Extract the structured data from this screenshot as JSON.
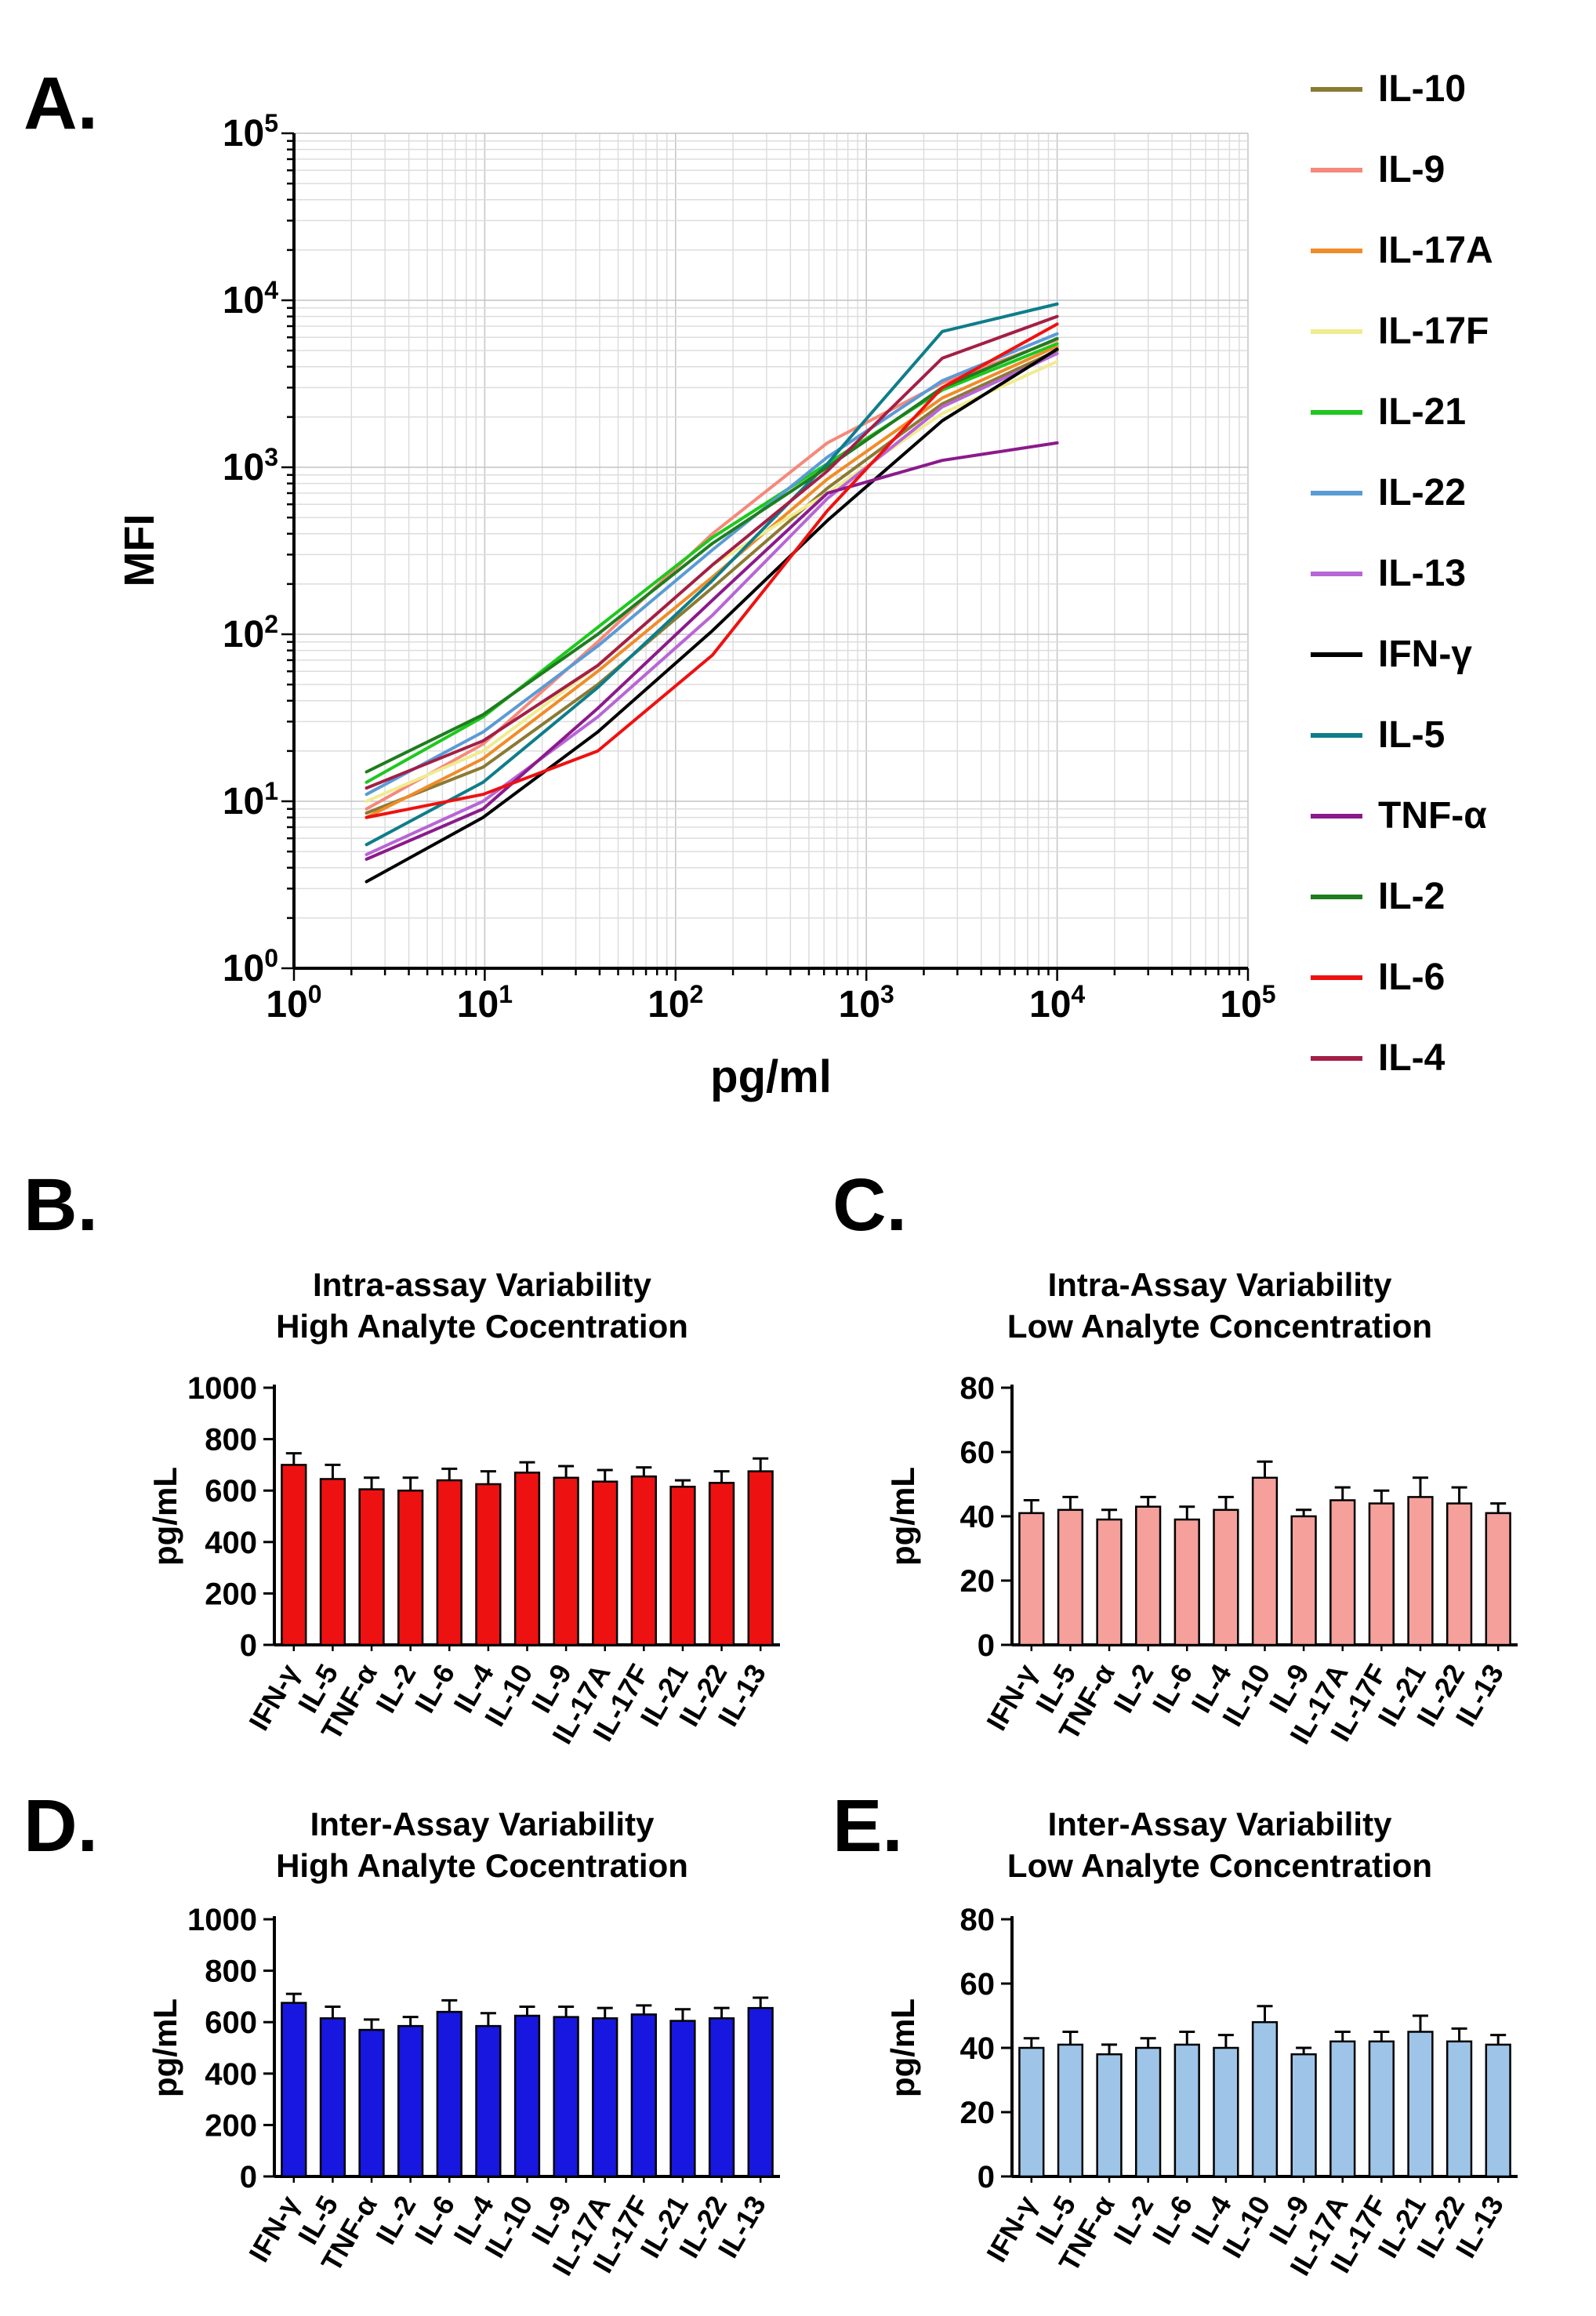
{
  "panels": {
    "a": {
      "label": "A."
    },
    "b": {
      "label": "B."
    },
    "c": {
      "label": "C."
    },
    "d": {
      "label": "D."
    },
    "e": {
      "label": "E."
    }
  },
  "chart_data": [
    {
      "id": "panel-a",
      "type": "line",
      "xscale": "log",
      "yscale": "log",
      "xlabel": "pg/ml",
      "ylabel": "MFI",
      "xlim": [
        1,
        100000
      ],
      "ylim": [
        1,
        100000
      ],
      "grid": true,
      "legend_position": "right",
      "x": [
        2.4,
        9.8,
        39.1,
        156,
        625,
        2500,
        10000
      ],
      "series": [
        {
          "name": "IL-10",
          "color": "#8a7a33",
          "values": [
            8.5,
            16,
            50,
            190,
            750,
            2400,
            5000
          ]
        },
        {
          "name": "IL-9",
          "color": "#f5897b",
          "values": [
            9,
            22,
            90,
            400,
            1400,
            3200,
            5800
          ]
        },
        {
          "name": "IL-17A",
          "color": "#f08c28",
          "values": [
            8,
            18,
            60,
            220,
            850,
            2600,
            5300
          ]
        },
        {
          "name": "IL-17F",
          "color": "#f0ec8f",
          "values": [
            10,
            20,
            65,
            260,
            700,
            2100,
            4300
          ]
        },
        {
          "name": "IL-21",
          "color": "#1ec81e",
          "values": [
            13,
            32,
            110,
            380,
            1050,
            2900,
            5500
          ]
        },
        {
          "name": "IL-22",
          "color": "#5b9bd5",
          "values": [
            11,
            26,
            85,
            320,
            1150,
            3300,
            6300
          ]
        },
        {
          "name": "IL-13",
          "color": "#b865d6",
          "values": [
            4.8,
            10,
            32,
            130,
            650,
            2300,
            4800
          ]
        },
        {
          "name": "IFN-γ",
          "color": "#000000",
          "values": [
            3.3,
            8,
            26,
            105,
            480,
            1900,
            5100
          ]
        },
        {
          "name": "IL-5",
          "color": "#0e7d8a",
          "values": [
            5.5,
            13,
            48,
            210,
            1050,
            6500,
            9500
          ]
        },
        {
          "name": "TNF-α",
          "color": "#8b1a8b",
          "values": [
            4.5,
            9,
            36,
            160,
            700,
            1100,
            1400
          ]
        },
        {
          "name": "IL-2",
          "color": "#1e7d1e",
          "values": [
            15,
            33,
            100,
            350,
            1000,
            3000,
            5900
          ]
        },
        {
          "name": "IL-6",
          "color": "#ee1111",
          "values": [
            8,
            11,
            20,
            75,
            550,
            3000,
            7200
          ]
        },
        {
          "name": "IL-4",
          "color": "#a31f45",
          "values": [
            12,
            23,
            65,
            260,
            950,
            4500,
            8000
          ]
        }
      ]
    },
    {
      "id": "panel-b",
      "type": "bar",
      "title": "Intra-assay Variability",
      "subtitle": "High Analyte Cocentration",
      "ylabel": "pg/mL",
      "ylim": [
        0,
        1000
      ],
      "ytick_step": 200,
      "bar_color": "#ee1111",
      "categories": [
        "IFN-γ",
        "IL-5",
        "TNF-α",
        "IL-2",
        "IL-6",
        "IL-4",
        "IL-10",
        "IL-9",
        "IL-17A",
        "IL-17F",
        "IL-21",
        "IL-22",
        "IL-13"
      ],
      "values": [
        700,
        645,
        605,
        600,
        640,
        625,
        670,
        650,
        635,
        655,
        615,
        630,
        675
      ],
      "errors": [
        45,
        55,
        45,
        50,
        45,
        50,
        40,
        45,
        45,
        35,
        25,
        45,
        50
      ]
    },
    {
      "id": "panel-c",
      "type": "bar",
      "title": "Intra-Assay Variability",
      "subtitle": "Low Analyte Concentration",
      "ylabel": "pg/mL",
      "ylim": [
        0,
        80
      ],
      "ytick_step": 20,
      "bar_color": "#f5a09b",
      "categories": [
        "IFN-γ",
        "IL-5",
        "TNF-α",
        "IL-2",
        "IL-6",
        "IL-4",
        "IL-10",
        "IL-9",
        "IL-17A",
        "IL-17F",
        "IL-21",
        "IL-22",
        "IL-13"
      ],
      "values": [
        41,
        42,
        39,
        43,
        39,
        42,
        52,
        40,
        45,
        44,
        46,
        44,
        41
      ],
      "errors": [
        4,
        4,
        3,
        3,
        4,
        4,
        5,
        2,
        4,
        4,
        6,
        5,
        3
      ]
    },
    {
      "id": "panel-d",
      "type": "bar",
      "title": "Inter-Assay Variability",
      "subtitle": "High Analyte Cocentration",
      "ylabel": "pg/mL",
      "ylim": [
        0,
        1000
      ],
      "ytick_step": 200,
      "bar_color": "#1717e0",
      "categories": [
        "IFN-γ",
        "IL-5",
        "TNF-α",
        "IL-2",
        "IL-6",
        "IL-4",
        "IL-10",
        "IL-9",
        "IL-17A",
        "IL-17F",
        "IL-21",
        "IL-22",
        "IL-13"
      ],
      "values": [
        675,
        615,
        570,
        585,
        640,
        585,
        625,
        620,
        615,
        630,
        605,
        615,
        655
      ],
      "errors": [
        35,
        45,
        40,
        35,
        45,
        50,
        35,
        40,
        40,
        35,
        45,
        40,
        40
      ]
    },
    {
      "id": "panel-e",
      "type": "bar",
      "title": "Inter-Assay Variability",
      "subtitle": "Low Analyte Concentration",
      "ylabel": "pg/mL",
      "ylim": [
        0,
        80
      ],
      "ytick_step": 20,
      "bar_color": "#9ec5e8",
      "categories": [
        "IFN-γ",
        "IL-5",
        "TNF-α",
        "IL-2",
        "IL-6",
        "IL-4",
        "IL-10",
        "IL-9",
        "IL-17A",
        "IL-17F",
        "IL-21",
        "IL-22",
        "IL-13"
      ],
      "values": [
        40,
        41,
        38,
        40,
        41,
        40,
        48,
        38,
        42,
        42,
        45,
        42,
        41
      ],
      "errors": [
        3,
        4,
        3,
        3,
        4,
        4,
        5,
        2,
        3,
        3,
        5,
        4,
        3
      ]
    }
  ]
}
